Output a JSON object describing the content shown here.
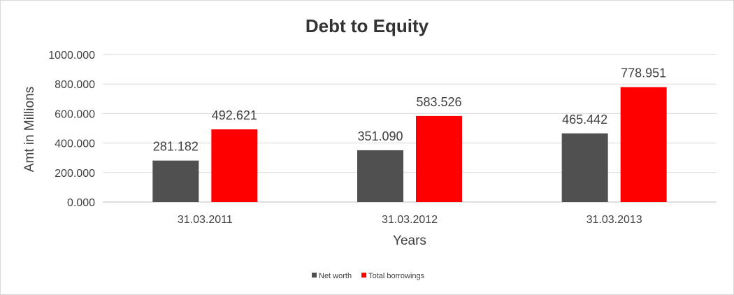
{
  "chart_data": {
    "type": "bar",
    "title": "Debt to Equity",
    "xlabel": "Years",
    "ylabel": "Amt in Millions",
    "categories": [
      "31.03.2011",
      "31.03.2012",
      "31.03.2013"
    ],
    "series": [
      {
        "name": "Net worth",
        "values": [
          281.182,
          351.09,
          465.442
        ],
        "color": "#505050"
      },
      {
        "name": "Total borrowings",
        "values": [
          492.621,
          583.526,
          778.951
        ],
        "color": "#ff0000"
      }
    ],
    "ylim": [
      0,
      1000
    ],
    "yticks": [
      "0.000",
      "200.000",
      "400.000",
      "600.000",
      "800.000",
      "1000.000"
    ],
    "data_labels": [
      [
        "281.182",
        "351.090",
        "465.442"
      ],
      [
        "492.621",
        "583.526",
        "778.951"
      ]
    ],
    "grid": true,
    "legend_position": "bottom"
  }
}
